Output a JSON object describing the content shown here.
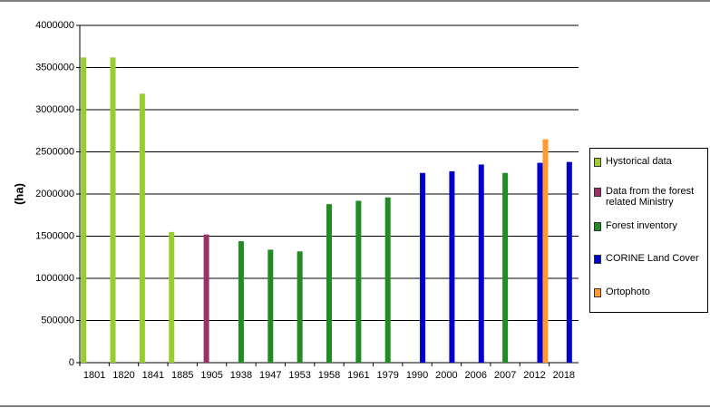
{
  "chart_data": {
    "type": "bar",
    "y_label": "(ha)",
    "categories": [
      "1801",
      "1820",
      "1841",
      "1885",
      "1905",
      "1938",
      "1947",
      "1953",
      "1958",
      "1961",
      "1979",
      "1990",
      "2000",
      "2006",
      "2007",
      "2012",
      "2018"
    ],
    "series": [
      {
        "name": "Hystorical data",
        "color": "#99cc33",
        "values": [
          3620000,
          3620000,
          3190000,
          1550000,
          null,
          null,
          null,
          null,
          null,
          null,
          null,
          null,
          null,
          null,
          null,
          null,
          null
        ]
      },
      {
        "name": "Data from the forest related Ministry",
        "color": "#993366",
        "values": [
          null,
          null,
          null,
          null,
          1520000,
          null,
          null,
          null,
          null,
          null,
          null,
          null,
          null,
          null,
          null,
          null,
          null
        ]
      },
      {
        "name": "Forest inventory",
        "color": "#238b23",
        "values": [
          null,
          null,
          null,
          null,
          null,
          1440000,
          1340000,
          1320000,
          1880000,
          1920000,
          1960000,
          null,
          null,
          null,
          2250000,
          null,
          null
        ]
      },
      {
        "name": "CORINE Land Cover",
        "color": "#0000cc",
        "values": [
          null,
          null,
          null,
          null,
          null,
          null,
          null,
          null,
          null,
          null,
          null,
          2250000,
          2270000,
          2350000,
          null,
          2370000,
          2380000
        ]
      },
      {
        "name": "Ortophoto",
        "color": "#ff9933",
        "values": [
          null,
          null,
          null,
          null,
          null,
          null,
          null,
          null,
          null,
          null,
          null,
          null,
          null,
          null,
          null,
          2650000,
          null
        ]
      }
    ],
    "ylim": [
      0,
      4000000
    ],
    "yticks": [
      0,
      500000,
      1000000,
      1500000,
      2000000,
      2500000,
      3000000,
      3500000,
      4000000
    ],
    "grid": true
  }
}
